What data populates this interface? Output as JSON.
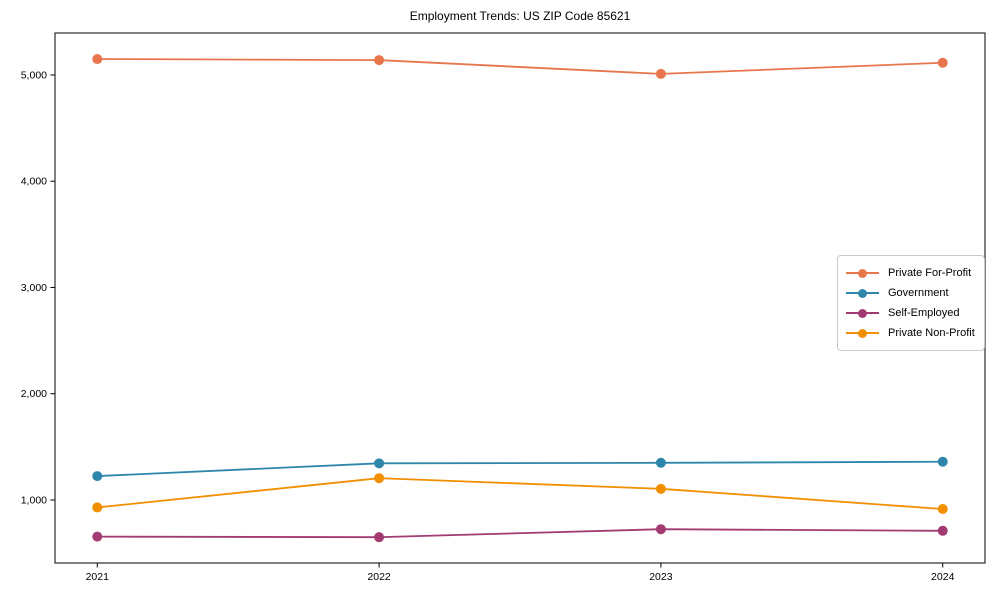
{
  "title": "Employment Trends: US ZIP Code 85621",
  "chart_data": {
    "type": "line",
    "title": "Employment Trends: US ZIP Code 85621",
    "xlabel": "",
    "ylabel": "",
    "x": [
      2021,
      2022,
      2023,
      2024
    ],
    "x_tick_labels": [
      "2021",
      "2022",
      "2023",
      "2024"
    ],
    "y_ticks": [
      1000,
      2000,
      3000,
      4000,
      5000
    ],
    "y_tick_labels": [
      "1,000",
      "2,000",
      "3,000",
      "4,000",
      "5,000"
    ],
    "xlim": [
      2020.85,
      2024.15
    ],
    "ylim": [
      407,
      5395
    ],
    "grid": false,
    "legend_position": "center-right",
    "series": [
      {
        "name": "Private For-Profit",
        "color": "#e8764d",
        "values": [
          5150,
          5140,
          5010,
          5115
        ]
      },
      {
        "name": "Government",
        "color": "#2e86ab",
        "values": [
          1225,
          1345,
          1350,
          1360
        ]
      },
      {
        "name": "Self-Employed",
        "color": "#a23b72",
        "values": [
          655,
          650,
          725,
          710
        ]
      },
      {
        "name": "Private Non-Profit",
        "color": "#f18f01",
        "values": [
          930,
          1205,
          1105,
          915
        ]
      }
    ]
  }
}
